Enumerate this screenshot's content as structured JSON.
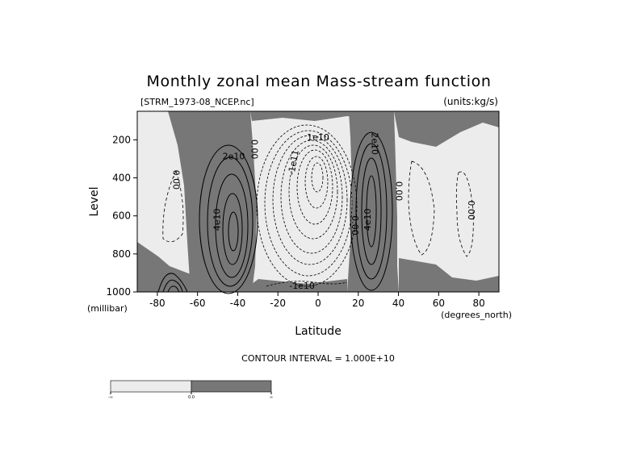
{
  "chart_data": {
    "type": "contour",
    "title": "Monthly zonal mean Mass-stream function",
    "file_label": "[STRM_1973-08_NCEP.nc]",
    "units_label": "(units:kg/s)",
    "xlabel": "Latitude",
    "x_units": "(degrees_north)",
    "ylabel": "Level",
    "y_units": "(millibar)",
    "xlim": [
      -90,
      90
    ],
    "ylim": [
      1000,
      50
    ],
    "y_inverted": true,
    "x_ticks": [
      -80,
      -60,
      -40,
      -20,
      0,
      20,
      40,
      60,
      80
    ],
    "y_ticks": [
      200,
      400,
      600,
      800,
      1000
    ],
    "contour_interval_text": "CONTOUR INTERVAL = 1.000E+10",
    "shading": "values >= 0 shaded dark grey, values < 0 light grey",
    "colorbar": {
      "labels": [
        "-∞",
        "0.0",
        "∞"
      ],
      "colors": [
        "#ececec",
        "#777777"
      ]
    },
    "contour_labels": [
      {
        "text": "2e10",
        "x": -42,
        "y": 290,
        "angle": 0
      },
      {
        "text": "4e10",
        "x": -50,
        "y": 620,
        "angle": -90
      },
      {
        "text": "0.00",
        "x": -71,
        "y": 410,
        "angle": 90
      },
      {
        "text": "0.00",
        "x": -32,
        "y": 250,
        "angle": 90
      },
      {
        "text": "-1e11",
        "x": -12,
        "y": 320,
        "angle": -80
      },
      {
        "text": "-1e10",
        "x": -8,
        "y": 970,
        "angle": 0
      },
      {
        "text": "1e10",
        "x": 0,
        "y": 190,
        "angle": 0
      },
      {
        "text": "0.00",
        "x": 18,
        "y": 650,
        "angle": 90
      },
      {
        "text": "4e10",
        "x": 25,
        "y": 620,
        "angle": -90
      },
      {
        "text": "2e10",
        "x": 28,
        "y": 220,
        "angle": 90
      },
      {
        "text": "0.00",
        "x": 40,
        "y": 470,
        "angle": 90
      },
      {
        "text": "0.00",
        "x": 76,
        "y": 570,
        "angle": 90
      }
    ],
    "features": [
      {
        "name": "southern-hemisphere-positive-cell",
        "sign": "positive",
        "center": [
          -42,
          620
        ],
        "max": 40000000000.0
      },
      {
        "name": "equatorial-negative-cell",
        "sign": "negative",
        "center": [
          -3,
          480
        ],
        "min": -100000000000.0
      },
      {
        "name": "northern-positive-cell",
        "sign": "positive",
        "center": [
          26,
          560
        ],
        "max": 40000000000.0
      },
      {
        "name": "southern-weak-negative-cell",
        "sign": "negative",
        "center": [
          -73,
          480
        ]
      },
      {
        "name": "northern-weak-negative-cell",
        "sign": "negative",
        "center": [
          52,
          500
        ]
      },
      {
        "name": "far-north-negative-cell",
        "sign": "negative",
        "center": [
          76,
          520
        ]
      }
    ]
  }
}
